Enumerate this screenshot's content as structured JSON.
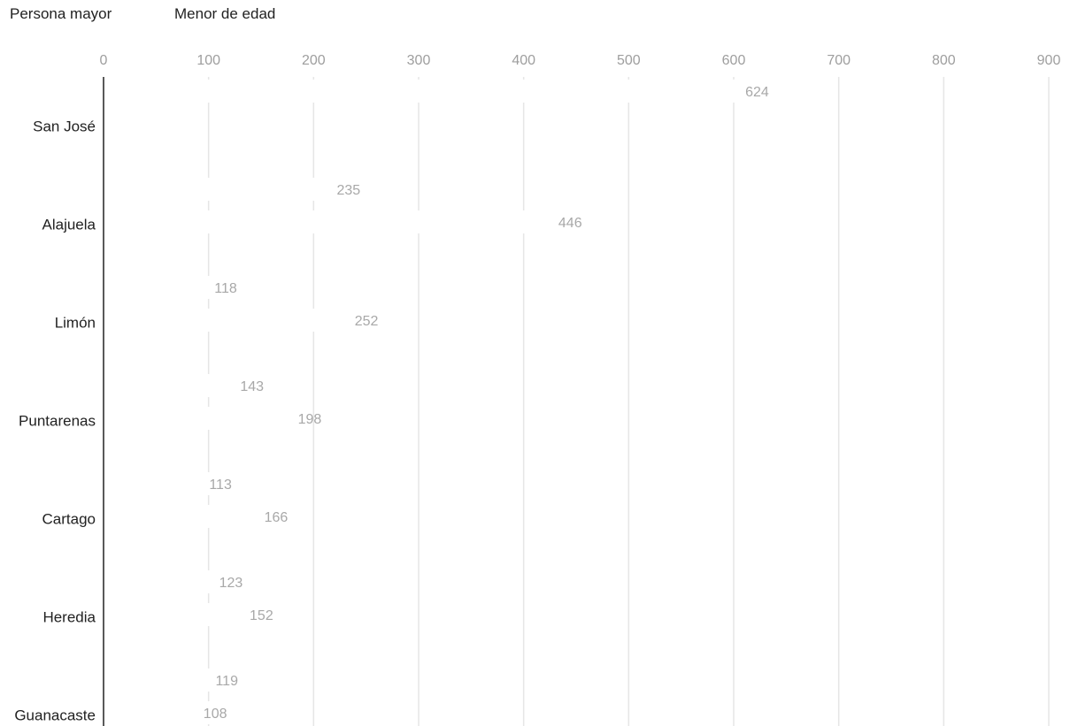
{
  "chart_data": {
    "type": "bar",
    "orientation": "horizontal",
    "title": "",
    "xlabel": "",
    "ylabel": "",
    "xlim": [
      0,
      900
    ],
    "x_ticks": [
      0,
      100,
      200,
      300,
      400,
      500,
      600,
      700,
      800,
      900
    ],
    "grid": true,
    "legend_position": "top-left",
    "categories": [
      "San José",
      "Alajuela",
      "Limón",
      "Puntarenas",
      "Cartago",
      "Heredia",
      "Guanacaste"
    ],
    "series": [
      {
        "name": "Persona mayor",
        "values": [
          624,
          235,
          118,
          143,
          113,
          123,
          119
        ]
      },
      {
        "name": "Menor de edad",
        "values": [
          null,
          446,
          252,
          198,
          166,
          152,
          108
        ]
      }
    ]
  },
  "colors": {
    "background": "#ffffff",
    "grid": "#e6e6e6",
    "axis": "#222222",
    "tick_text": "#9e9e9e",
    "data_label": "#a8a8a8",
    "series": [
      "#ffffff",
      "#ffffff"
    ]
  }
}
